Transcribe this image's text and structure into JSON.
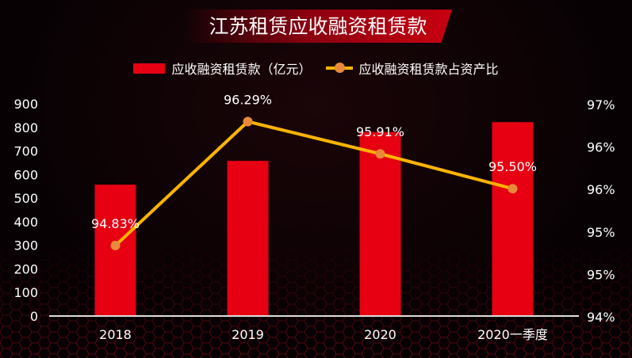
{
  "colors": {
    "bar": "#e60012",
    "line": "#ffb400",
    "marker": "#e88a3a",
    "background": "#070103"
  },
  "chart_data": {
    "type": "bar+line",
    "title": "江苏租赁应收融资租赁款",
    "categories": [
      "2018",
      "2019",
      "2020",
      "2020一季度"
    ],
    "series": [
      {
        "name": "应收融资租赁款（亿元）",
        "type": "bar",
        "axis": "left",
        "values": [
          557,
          658,
          780,
          822
        ]
      },
      {
        "name": "应收融资租赁款占资产比",
        "type": "line",
        "axis": "right",
        "values": [
          94.83,
          96.29,
          95.91,
          95.5
        ],
        "labels": [
          "94.83%",
          "96.29%",
          "95.91%",
          "95.50%"
        ]
      }
    ],
    "y_left": {
      "range": [
        0,
        900
      ],
      "ticks": [
        "0",
        "100",
        "200",
        "300",
        "400",
        "500",
        "600",
        "700",
        "800",
        "900"
      ]
    },
    "y_right": {
      "range": [
        94,
        96.5
      ],
      "ticks": [
        "94%",
        "95%",
        "95%",
        "96%",
        "96%",
        "97%"
      ]
    },
    "grid": false,
    "legend": "top"
  }
}
